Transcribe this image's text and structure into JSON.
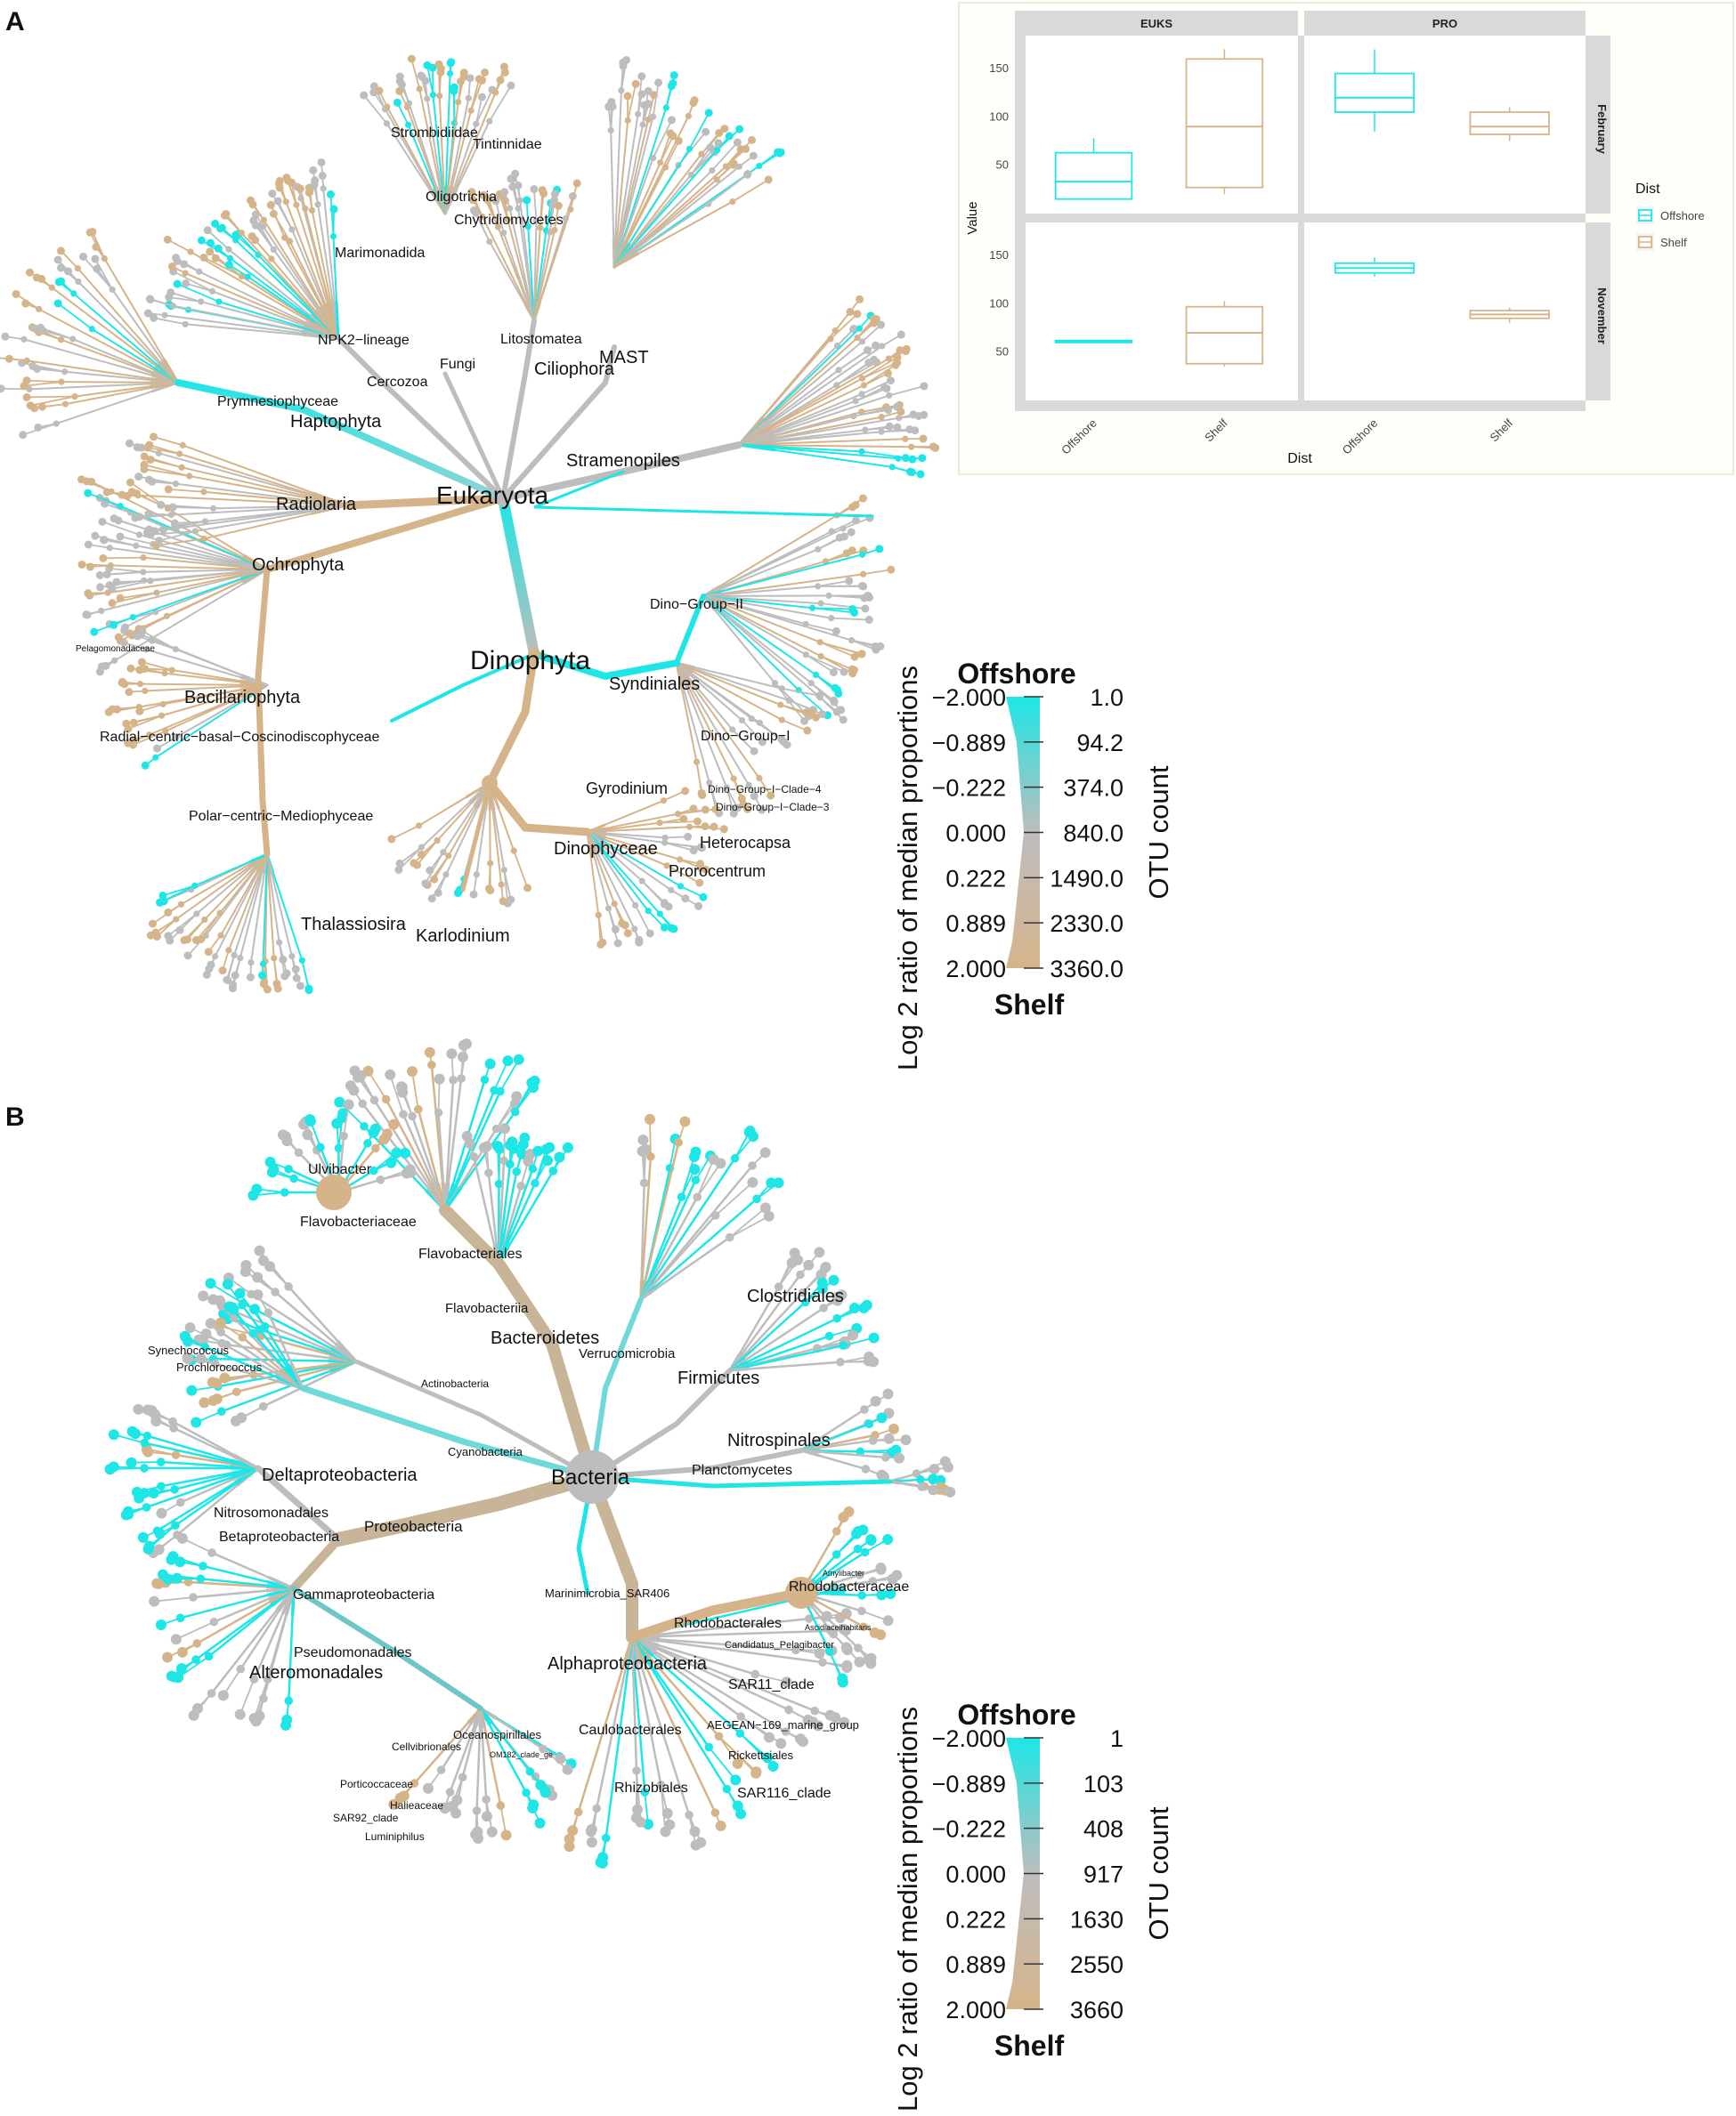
{
  "panels": {
    "a_letter": "A",
    "b_letter": "B"
  },
  "colors": {
    "offshore": "#1fe6e6",
    "shelf": "#d6b48a",
    "neutral": "#bdbdbd",
    "strip": "#d9d9d9",
    "panel_bg": "#ffffff"
  },
  "tree_a": {
    "root": "Eukaryota",
    "labels": [
      {
        "text": "Eukaryota",
        "size": 28
      },
      {
        "text": "Dinophyta",
        "size": 30
      },
      {
        "text": "Haptophyta",
        "size": 20
      },
      {
        "text": "Prymnesiophyceae",
        "size": 16
      },
      {
        "text": "Radiolaria",
        "size": 20
      },
      {
        "text": "Ochrophyta",
        "size": 20
      },
      {
        "text": "Bacillariophyta",
        "size": 20
      },
      {
        "text": "Radial−centric−basal−Coscinodiscophyceae",
        "size": 16
      },
      {
        "text": "Polar−centric−Mediophyceae",
        "size": 16
      },
      {
        "text": "Thalassiosira",
        "size": 20
      },
      {
        "text": "Karlodinium",
        "size": 20
      },
      {
        "text": "Gyrodinium",
        "size": 18
      },
      {
        "text": "Dinophyceae",
        "size": 20
      },
      {
        "text": "Heterocapsa",
        "size": 18
      },
      {
        "text": "Prorocentrum",
        "size": 18
      },
      {
        "text": "Syndiniales",
        "size": 20
      },
      {
        "text": "Dino−Group−II",
        "size": 16
      },
      {
        "text": "Dino−Group−I",
        "size": 16
      },
      {
        "text": "Dino−Group−I−Clade−3",
        "size": 12
      },
      {
        "text": "Dino−Group−I−Clade−4",
        "size": 12
      },
      {
        "text": "Stramenopiles",
        "size": 20
      },
      {
        "text": "MAST",
        "size": 20
      },
      {
        "text": "Ciliophora",
        "size": 20
      },
      {
        "text": "Litostomatea",
        "size": 16
      },
      {
        "text": "Fungi",
        "size": 16
      },
      {
        "text": "Cercozoa",
        "size": 16
      },
      {
        "text": "NPK2−lineage",
        "size": 16
      },
      {
        "text": "Marimonadida",
        "size": 16
      },
      {
        "text": "Chytridiomycetes",
        "size": 16
      },
      {
        "text": "Oligotrichia",
        "size": 16
      },
      {
        "text": "Strombidiidae",
        "size": 16
      },
      {
        "text": "Tintinnidae",
        "size": 16
      },
      {
        "text": "Pelagomonadaceae",
        "size": 10
      }
    ]
  },
  "legend_a": {
    "top": "Offshore",
    "bottom": "Shelf",
    "ratio_title": "Log 2 ratio of median proportions",
    "count_title": "OTU count",
    "ratio_ticks": [
      "−2.000",
      "−0.889",
      "−0.222",
      "0.000",
      "0.222",
      "0.889",
      "2.000"
    ],
    "count_ticks": [
      "1.0",
      "94.2",
      "374.0",
      "840.0",
      "1490.0",
      "2330.0",
      "3360.0"
    ]
  },
  "boxplot": {
    "ylabel": "Value",
    "xlabel": "Dist",
    "col_strips": [
      "EUKS",
      "PRO"
    ],
    "row_strips": [
      "February",
      "November"
    ],
    "x_categories": [
      "Offshore",
      "Shelf"
    ],
    "y_ticks": [
      50,
      100,
      150
    ],
    "legend_title": "Dist",
    "legend_items": [
      "Offshore",
      "Shelf"
    ]
  },
  "chart_data": {
    "type": "box",
    "title": "",
    "xlabel": "Dist",
    "ylabel": "Value",
    "ylim": [
      0,
      175
    ],
    "facets": [
      {
        "col": "EUKS",
        "row": "February",
        "boxes": [
          {
            "cat": "Offshore",
            "min": 15,
            "q1": 15,
            "median": 33,
            "q3": 63,
            "max": 78
          },
          {
            "cat": "Shelf",
            "min": 20,
            "q1": 27,
            "median": 90,
            "q3": 160,
            "max": 170
          }
        ]
      },
      {
        "col": "PRO",
        "row": "February",
        "boxes": [
          {
            "cat": "Offshore",
            "min": 85,
            "q1": 105,
            "median": 120,
            "q3": 145,
            "max": 170
          },
          {
            "cat": "Shelf",
            "min": 75,
            "q1": 82,
            "median": 90,
            "q3": 105,
            "max": 110
          }
        ]
      },
      {
        "col": "EUKS",
        "row": "November",
        "boxes": [
          {
            "cat": "Offshore",
            "min": 60,
            "q1": 60,
            "median": 61,
            "q3": 62,
            "max": 62
          },
          {
            "cat": "Shelf",
            "min": 35,
            "q1": 38,
            "median": 70,
            "q3": 97,
            "max": 103
          }
        ]
      },
      {
        "col": "PRO",
        "row": "November",
        "boxes": [
          {
            "cat": "Offshore",
            "min": 128,
            "q1": 132,
            "median": 137,
            "q3": 142,
            "max": 148
          },
          {
            "cat": "Shelf",
            "min": 80,
            "q1": 85,
            "median": 89,
            "q3": 93,
            "max": 96
          }
        ]
      }
    ],
    "legend_position": "right"
  },
  "tree_b": {
    "root": "Bacteria",
    "labels": [
      {
        "text": "Bacteria",
        "size": 24
      },
      {
        "text": "Proteobacteria",
        "size": 17
      },
      {
        "text": "Bacteroidetes",
        "size": 20
      },
      {
        "text": "Flavobacteriia",
        "size": 15
      },
      {
        "text": "Flavobacteriales",
        "size": 16
      },
      {
        "text": "Flavobacteriaceae",
        "size": 16
      },
      {
        "text": "Ulvibacter",
        "size": 16
      },
      {
        "text": "Clostridiales",
        "size": 20
      },
      {
        "text": "Verrucomicrobia",
        "size": 15
      },
      {
        "text": "Firmicutes",
        "size": 20
      },
      {
        "text": "Nitrospinales",
        "size": 20
      },
      {
        "text": "Planctomycetes",
        "size": 16
      },
      {
        "text": "Actinobacteria",
        "size": 12
      },
      {
        "text": "Cyanobacteria",
        "size": 13
      },
      {
        "text": "Synechococcus",
        "size": 13
      },
      {
        "text": "Prochlorococcus",
        "size": 13
      },
      {
        "text": "Deltaproteobacteria",
        "size": 20
      },
      {
        "text": "Nitrosomonadales",
        "size": 16
      },
      {
        "text": "Betaproteobacteria",
        "size": 16
      },
      {
        "text": "Gammaproteobacteria",
        "size": 16
      },
      {
        "text": "Pseudomonadales",
        "size": 16
      },
      {
        "text": "Alteromonadales",
        "size": 20
      },
      {
        "text": "Oceanospirillales",
        "size": 13
      },
      {
        "text": "OM182_clade_ge",
        "size": 9
      },
      {
        "text": "Cellvibrionales",
        "size": 12
      },
      {
        "text": "Porticoccaceae",
        "size": 12
      },
      {
        "text": "Halieaceae",
        "size": 12
      },
      {
        "text": "SAR92_clade",
        "size": 12
      },
      {
        "text": "Luminiphilus",
        "size": 12
      },
      {
        "text": "Marinimicrobia_SAR406",
        "size": 13
      },
      {
        "text": "Alphaproteobacteria",
        "size": 20
      },
      {
        "text": "Rhodobacterales",
        "size": 16
      },
      {
        "text": "Rhodobacteraceae",
        "size": 16
      },
      {
        "text": "Amylibacter",
        "size": 9
      },
      {
        "text": "Ascidiaceihabitans",
        "size": 9
      },
      {
        "text": "Candidatus_Pelagibacter",
        "size": 11
      },
      {
        "text": "SAR11_clade",
        "size": 16
      },
      {
        "text": "AEGEAN−169_marine_group",
        "size": 13
      },
      {
        "text": "Caulobacterales",
        "size": 16
      },
      {
        "text": "Rickettsiales",
        "size": 13
      },
      {
        "text": "SAR116_clade",
        "size": 16
      },
      {
        "text": "Rhizobiales",
        "size": 16
      }
    ]
  },
  "legend_b": {
    "top": "Offshore",
    "bottom": "Shelf",
    "ratio_title": "Log 2 ratio of median proportions",
    "count_title": "OTU count",
    "ratio_ticks": [
      "−2.000",
      "−0.889",
      "−0.222",
      "0.000",
      "0.222",
      "0.889",
      "2.000"
    ],
    "count_ticks": [
      "1",
      "103",
      "408",
      "917",
      "1630",
      "2550",
      "3660"
    ]
  }
}
